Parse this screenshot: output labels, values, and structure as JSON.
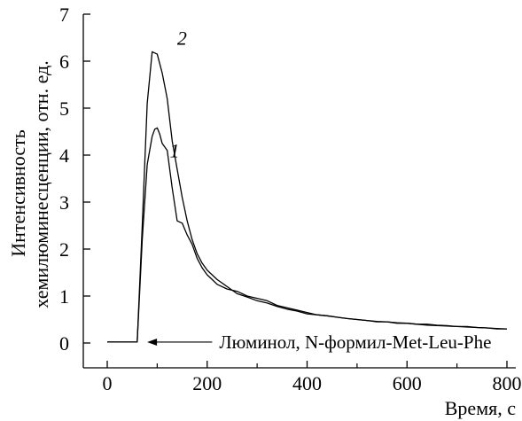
{
  "chart_data": {
    "type": "line",
    "xlabel": "Время, с",
    "ylabel_line1": "Интенсивность",
    "ylabel_line2": "хемилюминесценции, отн. ед.",
    "xlim": [
      -50,
      800
    ],
    "ylim": [
      -0.3,
      7
    ],
    "xticks": [
      0,
      200,
      400,
      600,
      800
    ],
    "yticks": [
      0,
      1,
      2,
      3,
      4,
      5,
      6,
      7
    ],
    "grid": false,
    "series": [
      {
        "name": "1",
        "x": [
          0,
          30,
          60,
          70,
          80,
          90,
          95,
          100,
          105,
          110,
          120,
          130,
          140,
          150,
          160,
          170,
          180,
          190,
          200,
          210,
          220,
          240,
          260,
          280,
          300,
          320,
          340,
          360,
          380,
          400,
          420,
          440,
          460,
          480,
          500,
          520,
          540,
          560,
          580,
          600,
          620,
          640,
          660,
          680,
          700,
          720,
          740,
          760,
          780,
          800
        ],
        "values": [
          0.02,
          0.02,
          0.02,
          2.2,
          3.8,
          4.4,
          4.55,
          4.58,
          4.45,
          4.25,
          4.1,
          3.3,
          2.6,
          2.55,
          2.3,
          2.1,
          1.8,
          1.6,
          1.45,
          1.35,
          1.25,
          1.15,
          1.1,
          1.0,
          0.95,
          0.9,
          0.8,
          0.75,
          0.7,
          0.65,
          0.6,
          0.58,
          0.55,
          0.52,
          0.5,
          0.48,
          0.45,
          0.45,
          0.42,
          0.42,
          0.4,
          0.4,
          0.38,
          0.37,
          0.35,
          0.35,
          0.33,
          0.32,
          0.3,
          0.3
        ]
      },
      {
        "name": "2",
        "x": [
          0,
          30,
          60,
          70,
          80,
          90,
          100,
          110,
          120,
          130,
          140,
          150,
          160,
          170,
          180,
          190,
          200,
          210,
          220,
          240,
          260,
          280,
          300,
          320,
          340,
          360,
          380,
          400,
          420,
          440,
          460,
          480,
          500,
          520,
          540,
          560,
          580,
          600,
          620,
          640,
          660,
          680,
          700,
          720,
          740,
          760,
          780,
          800
        ],
        "values": [
          0.02,
          0.02,
          0.02,
          2.5,
          5.1,
          6.2,
          6.15,
          5.75,
          5.2,
          4.3,
          3.7,
          3.1,
          2.6,
          2.2,
          1.9,
          1.7,
          1.55,
          1.45,
          1.35,
          1.2,
          1.05,
          0.98,
          0.9,
          0.85,
          0.78,
          0.72,
          0.68,
          0.62,
          0.6,
          0.58,
          0.55,
          0.52,
          0.5,
          0.48,
          0.46,
          0.45,
          0.43,
          0.42,
          0.4,
          0.38,
          0.37,
          0.36,
          0.35,
          0.34,
          0.33,
          0.32,
          0.31,
          0.3
        ]
      }
    ],
    "curve_labels": [
      {
        "text": "1",
        "x": 125,
        "y": 3.95
      },
      {
        "text": "2",
        "x": 140,
        "y": 6.35
      }
    ],
    "annotation": {
      "text": "Люминол, N-формил-Met-Leu-Phe",
      "arrow_to_x": 80,
      "arrow_from_x": 210,
      "y": 0.02
    }
  }
}
